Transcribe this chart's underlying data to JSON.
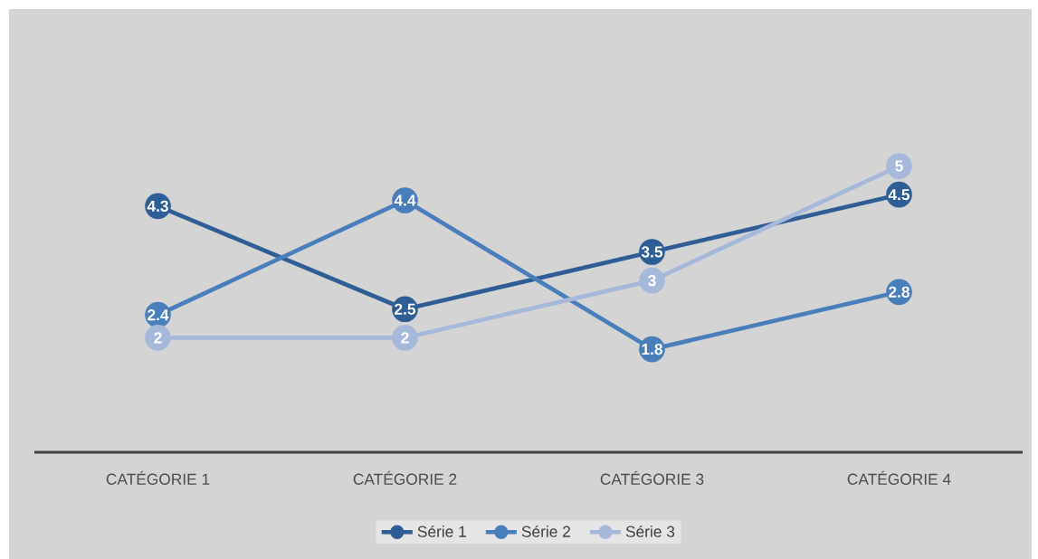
{
  "chart_data": {
    "type": "line",
    "categories": [
      "CATÉGORIE 1",
      "CATÉGORIE 2",
      "CATÉGORIE 3",
      "CATÉGORIE 4"
    ],
    "series": [
      {
        "name": "Série 1",
        "color": "#2f5d95",
        "values": [
          4.3,
          2.5,
          3.5,
          4.5
        ]
      },
      {
        "name": "Série 2",
        "color": "#4a7ebb",
        "values": [
          2.4,
          4.4,
          1.8,
          2.8
        ]
      },
      {
        "name": "Série 3",
        "color": "#a7b9da",
        "values": [
          2,
          2,
          3,
          5
        ]
      }
    ],
    "data_labels": true,
    "marker": "circle",
    "line_style": "solid",
    "legend": "bottom",
    "grid": false
  }
}
